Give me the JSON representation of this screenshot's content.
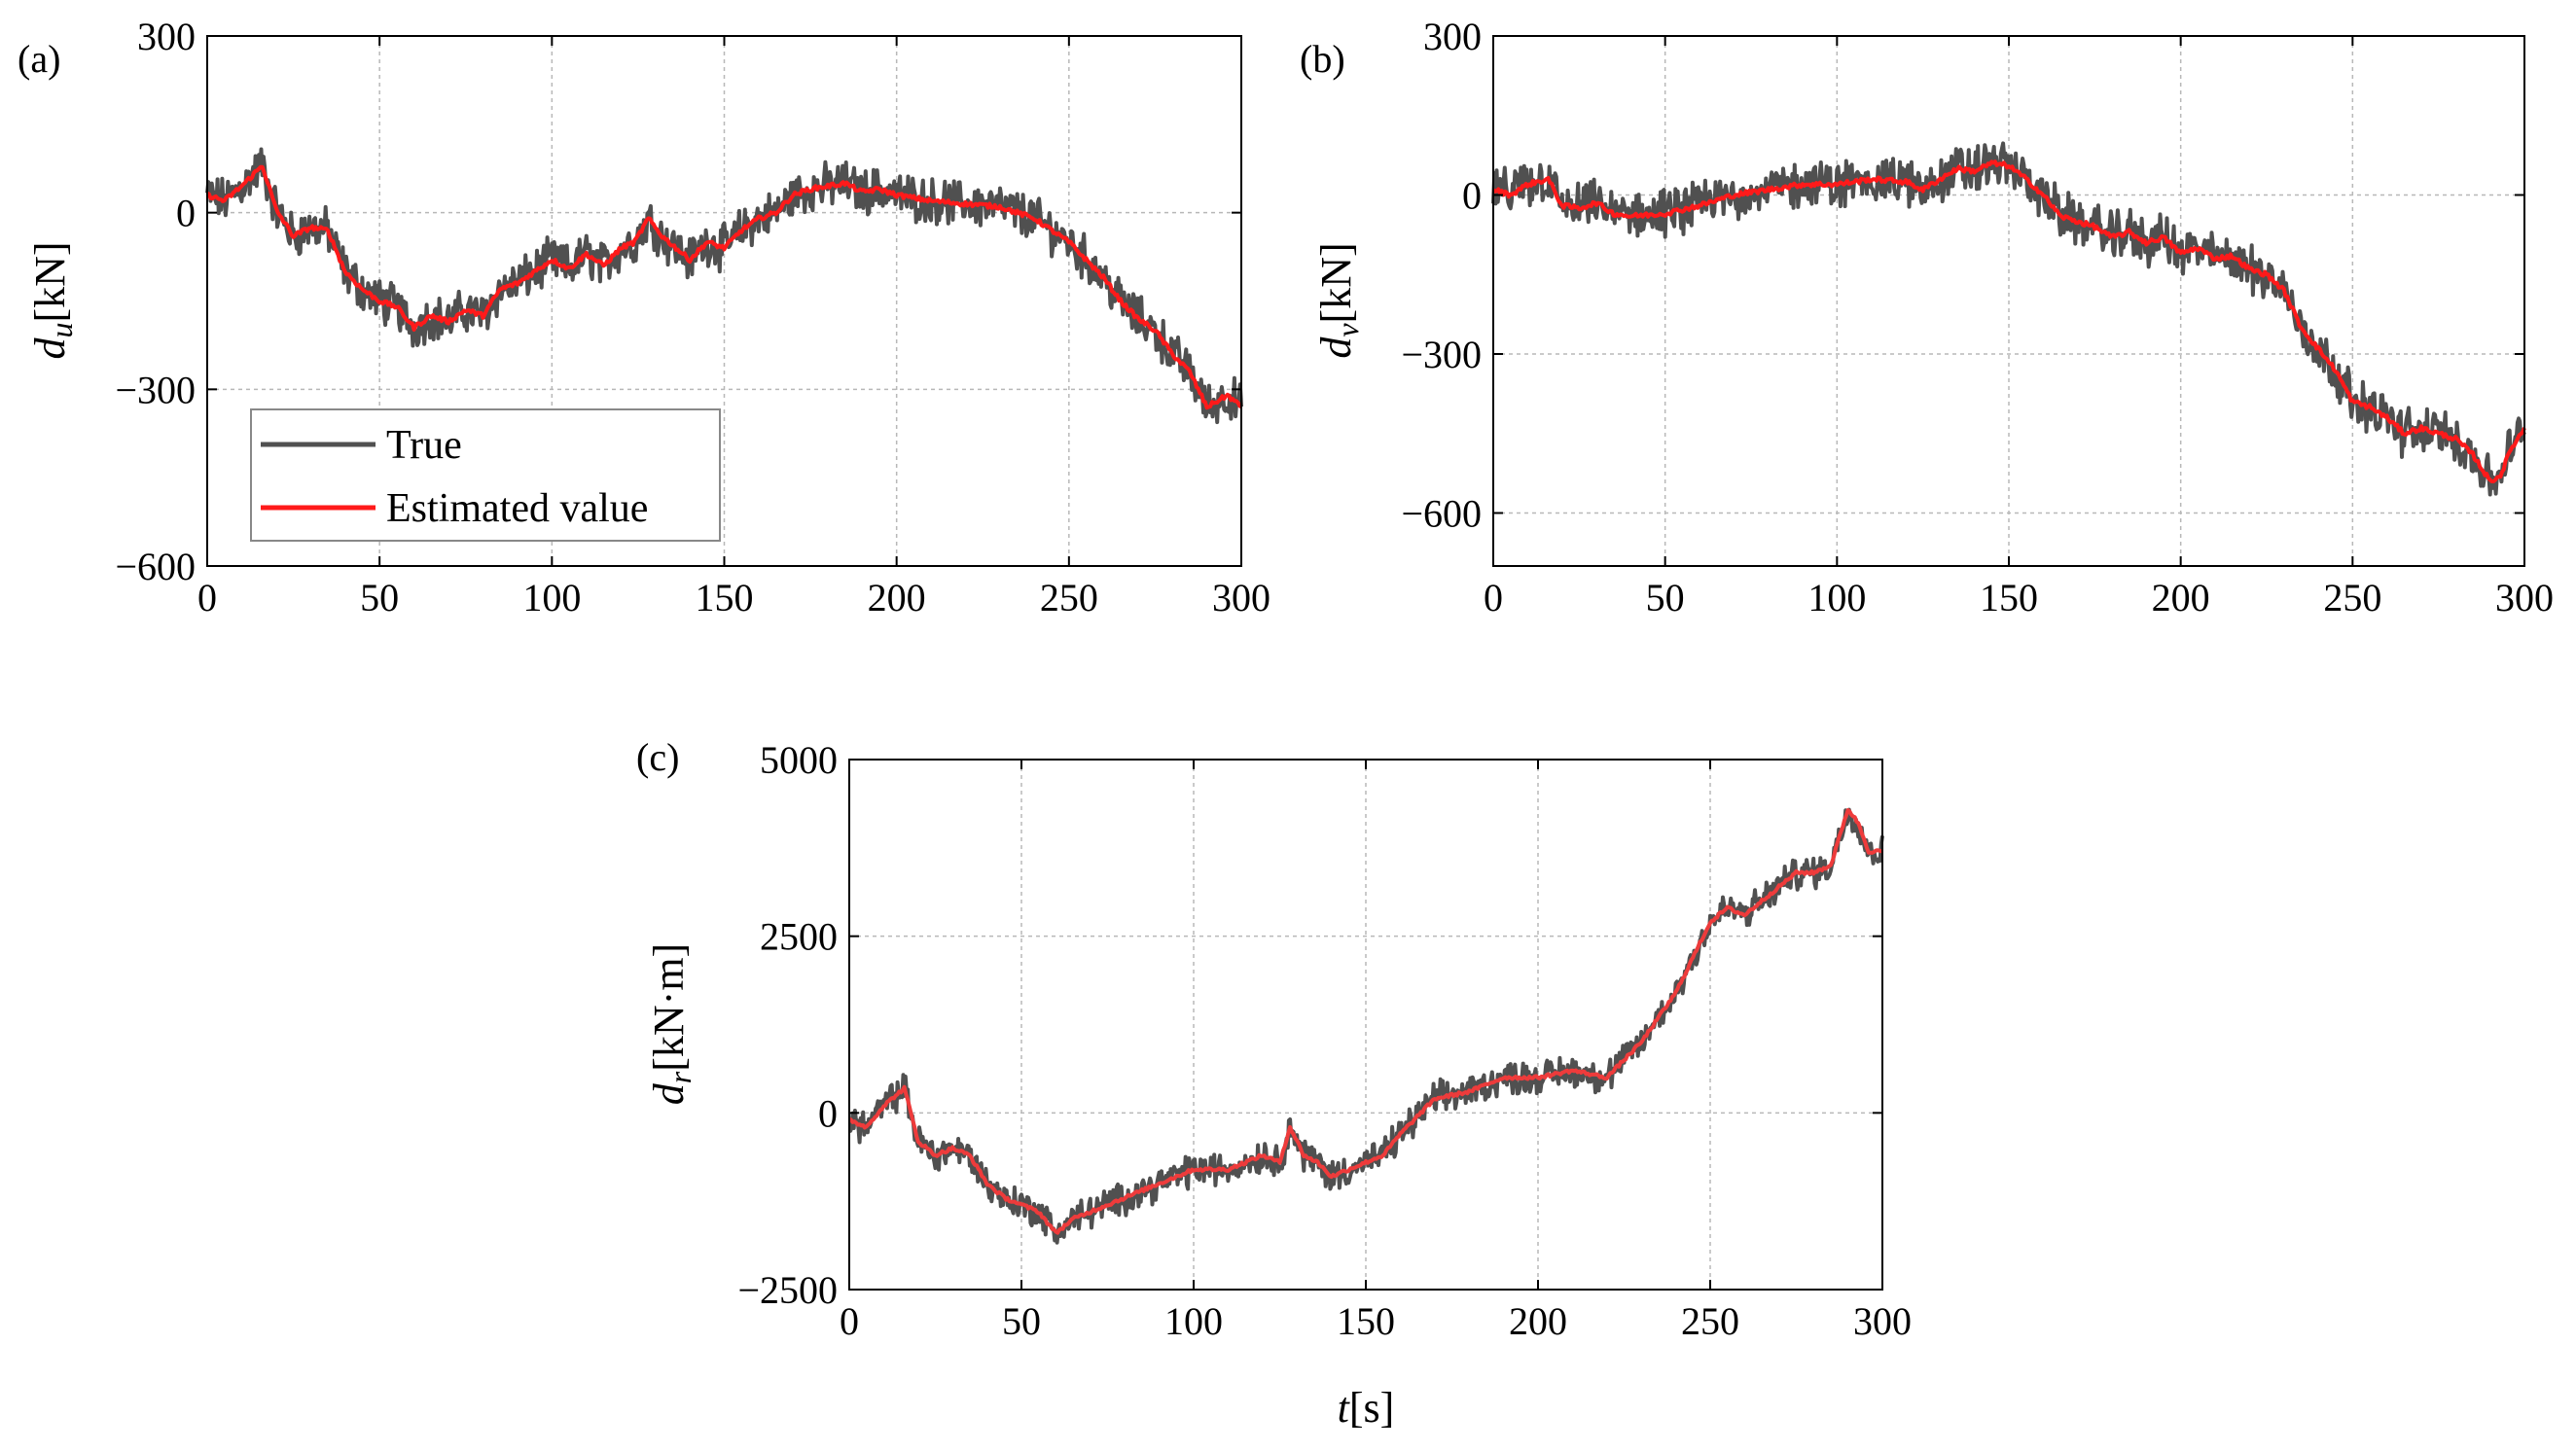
{
  "chart_data": [
    {
      "id": "a",
      "type": "line",
      "panel_label": "(a)",
      "ylabel": {
        "main": "d",
        "sub": "u",
        "unit": "[kN]"
      },
      "xlabel": "",
      "xlim": [
        0,
        300
      ],
      "ylim": [
        -600,
        300
      ],
      "xticks": [
        0,
        50,
        100,
        150,
        200,
        250,
        300
      ],
      "yticks": [
        -600,
        -300,
        0,
        300
      ],
      "grid": true,
      "legend": {
        "position": "lower-left",
        "entries": [
          "True",
          "Estimated value"
        ]
      },
      "noise_amplitude": 30,
      "series": [
        {
          "name": "True",
          "color": "#505050",
          "t": [
            0,
            5,
            10,
            16,
            20,
            25,
            30,
            35,
            40,
            45,
            50,
            55,
            60,
            65,
            70,
            75,
            80,
            85,
            90,
            95,
            100,
            105,
            110,
            115,
            120,
            124,
            128,
            132,
            136,
            140,
            145,
            150,
            155,
            160,
            165,
            170,
            175,
            180,
            185,
            190,
            195,
            200,
            210,
            220,
            230,
            240,
            250,
            255,
            260,
            265,
            270,
            275,
            280,
            285,
            290,
            293,
            296,
            300
          ],
          "v": [
            30,
            20,
            45,
            80,
            5,
            -40,
            -25,
            -30,
            -100,
            -130,
            -150,
            -160,
            -195,
            -175,
            -185,
            -165,
            -175,
            -130,
            -120,
            -100,
            -80,
            -95,
            -70,
            -90,
            -60,
            -50,
            -10,
            -40,
            -60,
            -80,
            -50,
            -60,
            -30,
            -10,
            0,
            30,
            40,
            45,
            50,
            35,
            40,
            30,
            20,
            15,
            10,
            -10,
            -50,
            -80,
            -110,
            -150,
            -180,
            -200,
            -240,
            -270,
            -330,
            -320,
            -310,
            -330
          ]
        },
        {
          "name": "Estimated value",
          "color": "#ff1a1a",
          "t": [
            0,
            5,
            10,
            16,
            20,
            25,
            30,
            35,
            40,
            45,
            50,
            55,
            60,
            65,
            70,
            75,
            80,
            85,
            90,
            95,
            100,
            105,
            110,
            115,
            120,
            124,
            128,
            132,
            136,
            140,
            145,
            150,
            155,
            160,
            165,
            170,
            175,
            180,
            185,
            190,
            195,
            200,
            210,
            220,
            230,
            240,
            250,
            255,
            260,
            265,
            270,
            275,
            280,
            285,
            290,
            293,
            296,
            300
          ],
          "v": [
            30,
            20,
            45,
            80,
            5,
            -40,
            -25,
            -30,
            -100,
            -130,
            -150,
            -160,
            -195,
            -175,
            -185,
            -165,
            -175,
            -130,
            -120,
            -100,
            -80,
            -95,
            -70,
            -90,
            -60,
            -50,
            -10,
            -40,
            -60,
            -80,
            -50,
            -60,
            -30,
            -10,
            0,
            30,
            40,
            45,
            50,
            35,
            40,
            30,
            20,
            15,
            10,
            -10,
            -50,
            -80,
            -110,
            -150,
            -180,
            -200,
            -240,
            -270,
            -330,
            -320,
            -310,
            -330
          ]
        }
      ]
    },
    {
      "id": "b",
      "type": "line",
      "panel_label": "(b)",
      "ylabel": {
        "main": "d",
        "sub": "v",
        "unit": "[kN]"
      },
      "xlabel": "",
      "xlim": [
        0,
        300
      ],
      "ylim": [
        -700,
        300
      ],
      "xticks": [
        0,
        50,
        100,
        150,
        200,
        250,
        300
      ],
      "yticks": [
        -600,
        -300,
        0,
        300
      ],
      "grid": true,
      "legend": null,
      "noise_amplitude": 35,
      "series": [
        {
          "name": "True",
          "color": "#505050",
          "t": [
            0,
            5,
            10,
            16,
            20,
            25,
            30,
            35,
            40,
            50,
            60,
            70,
            80,
            90,
            100,
            110,
            120,
            125,
            130,
            135,
            140,
            145,
            150,
            155,
            160,
            165,
            170,
            175,
            180,
            185,
            190,
            195,
            200,
            205,
            210,
            215,
            220,
            225,
            230,
            235,
            240,
            245,
            250,
            255,
            260,
            265,
            270,
            275,
            280,
            285,
            290,
            293,
            296,
            300
          ],
          "v": [
            10,
            0,
            20,
            30,
            -20,
            -25,
            -15,
            -35,
            -40,
            -35,
            -20,
            0,
            10,
            20,
            20,
            30,
            25,
            10,
            30,
            50,
            45,
            60,
            55,
            30,
            0,
            -40,
            -50,
            -60,
            -80,
            -70,
            -90,
            -80,
            -110,
            -100,
            -120,
            -115,
            -140,
            -150,
            -180,
            -250,
            -290,
            -330,
            -390,
            -400,
            -420,
            -450,
            -440,
            -450,
            -460,
            -490,
            -540,
            -530,
            -480,
            -440
          ]
        },
        {
          "name": "Estimated value",
          "color": "#ff1a1a",
          "t": [
            0,
            5,
            10,
            16,
            20,
            25,
            30,
            35,
            40,
            50,
            60,
            70,
            80,
            90,
            100,
            110,
            120,
            125,
            130,
            135,
            140,
            145,
            150,
            155,
            160,
            165,
            170,
            175,
            180,
            185,
            190,
            195,
            200,
            205,
            210,
            215,
            220,
            225,
            230,
            235,
            240,
            245,
            250,
            255,
            260,
            265,
            270,
            275,
            280,
            285,
            290,
            293,
            296,
            300
          ],
          "v": [
            10,
            0,
            20,
            30,
            -20,
            -25,
            -15,
            -35,
            -40,
            -35,
            -20,
            0,
            10,
            20,
            20,
            30,
            25,
            10,
            30,
            50,
            45,
            60,
            55,
            30,
            0,
            -40,
            -50,
            -60,
            -80,
            -70,
            -90,
            -80,
            -110,
            -100,
            -120,
            -115,
            -140,
            -150,
            -180,
            -250,
            -290,
            -330,
            -390,
            -400,
            -420,
            -450,
            -440,
            -450,
            -460,
            -490,
            -540,
            -530,
            -480,
            -440
          ]
        }
      ]
    },
    {
      "id": "c",
      "type": "line",
      "panel_label": "(c)",
      "ylabel": {
        "main": "d",
        "sub": "r",
        "unit": "[kN·m]"
      },
      "xlabel": "t[s]",
      "xlim": [
        0,
        300
      ],
      "ylim": [
        -2500,
        5000
      ],
      "xticks": [
        0,
        50,
        100,
        150,
        200,
        250,
        300
      ],
      "yticks": [
        -2500,
        0,
        2500,
        5000
      ],
      "grid": true,
      "legend": null,
      "noise_amplitude": 180,
      "series": [
        {
          "name": "True",
          "color": "#505050",
          "t": [
            0,
            5,
            10,
            16,
            20,
            25,
            30,
            35,
            40,
            45,
            50,
            55,
            60,
            65,
            70,
            75,
            80,
            90,
            100,
            110,
            120,
            125,
            128,
            132,
            136,
            140,
            145,
            150,
            155,
            160,
            170,
            180,
            190,
            200,
            210,
            220,
            230,
            240,
            250,
            255,
            260,
            265,
            270,
            275,
            280,
            285,
            290,
            293,
            296,
            300
          ],
          "v": [
            -100,
            -200,
            100,
            350,
            -400,
            -600,
            -500,
            -600,
            -1000,
            -1200,
            -1300,
            -1400,
            -1700,
            -1500,
            -1400,
            -1300,
            -1200,
            -1000,
            -800,
            -800,
            -600,
            -700,
            -200,
            -600,
            -700,
            -900,
            -800,
            -700,
            -600,
            -300,
            200,
            300,
            500,
            500,
            600,
            500,
            1000,
            1700,
            2700,
            2900,
            2800,
            3000,
            3200,
            3400,
            3400,
            3500,
            4300,
            4100,
            3700,
            3700
          ]
        },
        {
          "name": "Estimated value",
          "color": "#ee3b3b",
          "t": [
            0,
            5,
            10,
            16,
            20,
            25,
            30,
            35,
            40,
            45,
            50,
            55,
            60,
            65,
            70,
            75,
            80,
            90,
            100,
            110,
            120,
            125,
            128,
            132,
            136,
            140,
            145,
            150,
            155,
            160,
            170,
            180,
            190,
            200,
            210,
            220,
            230,
            240,
            250,
            255,
            260,
            265,
            270,
            275,
            280,
            285,
            290,
            293,
            296,
            300
          ],
          "v": [
            -100,
            -200,
            100,
            350,
            -400,
            -600,
            -500,
            -600,
            -1000,
            -1200,
            -1300,
            -1400,
            -1700,
            -1500,
            -1400,
            -1300,
            -1200,
            -1000,
            -800,
            -800,
            -600,
            -700,
            -200,
            -600,
            -700,
            -900,
            -800,
            -700,
            -600,
            -300,
            200,
            300,
            500,
            500,
            600,
            500,
            1000,
            1700,
            2700,
            2900,
            2800,
            3000,
            3200,
            3400,
            3400,
            3500,
            4300,
            4100,
            3700,
            3700
          ]
        }
      ]
    }
  ]
}
